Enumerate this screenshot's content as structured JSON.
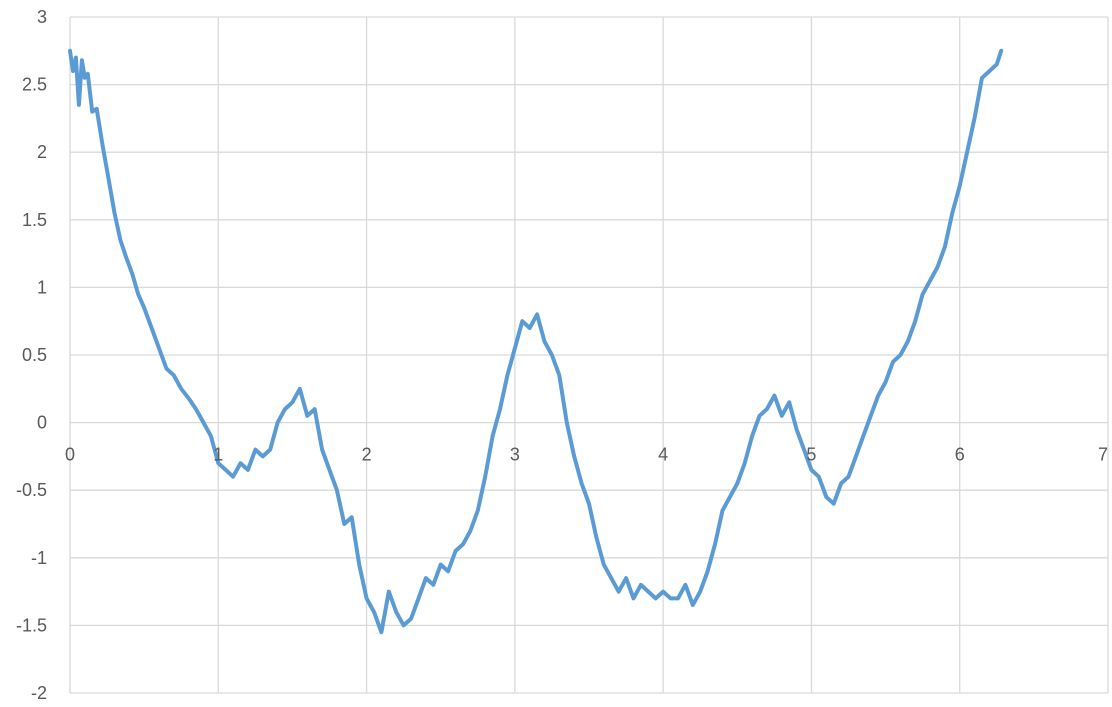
{
  "chart_data": {
    "type": "line",
    "title": "",
    "xlabel": "",
    "ylabel": "",
    "xlim": [
      0,
      7
    ],
    "ylim": [
      -2,
      3
    ],
    "xticks": [
      "0",
      "1",
      "2",
      "3",
      "4",
      "5",
      "6",
      "7"
    ],
    "yticks": [
      "3",
      "2.5",
      "2",
      "1.5",
      "1",
      "0.5",
      "0",
      "-0.5",
      "-1",
      "-1.5",
      "-2"
    ],
    "grid": true,
    "legend": "none",
    "line_color": "#5B9BD5",
    "grid_color": "#D9D9D9",
    "series": [
      {
        "x": [
          0.0,
          0.02,
          0.04,
          0.06,
          0.08,
          0.1,
          0.12,
          0.15,
          0.18,
          0.22,
          0.26,
          0.3,
          0.34,
          0.38,
          0.42,
          0.46,
          0.5,
          0.55,
          0.6,
          0.65,
          0.7,
          0.75,
          0.8,
          0.85,
          0.9,
          0.95,
          1.0,
          1.05,
          1.1,
          1.15,
          1.2,
          1.25,
          1.3,
          1.35,
          1.4,
          1.45,
          1.5,
          1.55,
          1.6,
          1.65,
          1.7,
          1.75,
          1.8,
          1.85,
          1.9,
          1.95,
          2.0,
          2.05,
          2.1,
          2.15,
          2.2,
          2.25,
          2.3,
          2.35,
          2.4,
          2.45,
          2.5,
          2.55,
          2.6,
          2.65,
          2.7,
          2.75,
          2.8,
          2.85,
          2.9,
          2.95,
          3.0,
          3.05,
          3.1,
          3.15,
          3.2,
          3.25,
          3.3,
          3.35,
          3.4,
          3.45,
          3.5,
          3.55,
          3.6,
          3.65,
          3.7,
          3.75,
          3.8,
          3.85,
          3.9,
          3.95,
          4.0,
          4.05,
          4.1,
          4.15,
          4.2,
          4.25,
          4.3,
          4.35,
          4.4,
          4.45,
          4.5,
          4.55,
          4.6,
          4.65,
          4.7,
          4.75,
          4.8,
          4.85,
          4.9,
          4.95,
          5.0,
          5.05,
          5.1,
          5.15,
          5.2,
          5.25,
          5.3,
          5.35,
          5.4,
          5.45,
          5.5,
          5.55,
          5.6,
          5.65,
          5.7,
          5.75,
          5.8,
          5.85,
          5.9,
          5.95,
          6.0,
          6.05,
          6.1,
          6.15,
          6.2,
          6.25,
          6.28
        ],
        "y": [
          2.75,
          2.6,
          2.7,
          2.35,
          2.68,
          2.55,
          2.58,
          2.3,
          2.32,
          2.05,
          1.8,
          1.55,
          1.35,
          1.22,
          1.1,
          0.95,
          0.85,
          0.7,
          0.55,
          0.4,
          0.35,
          0.25,
          0.18,
          0.1,
          0.0,
          -0.1,
          -0.3,
          -0.35,
          -0.4,
          -0.3,
          -0.35,
          -0.2,
          -0.25,
          -0.2,
          0.0,
          0.1,
          0.15,
          0.25,
          0.05,
          0.1,
          -0.2,
          -0.35,
          -0.5,
          -0.75,
          -0.7,
          -1.05,
          -1.3,
          -1.4,
          -1.55,
          -1.25,
          -1.4,
          -1.5,
          -1.45,
          -1.3,
          -1.15,
          -1.2,
          -1.05,
          -1.1,
          -0.95,
          -0.9,
          -0.8,
          -0.65,
          -0.4,
          -0.1,
          0.1,
          0.35,
          0.55,
          0.75,
          0.7,
          0.8,
          0.6,
          0.5,
          0.35,
          0.0,
          -0.25,
          -0.45,
          -0.6,
          -0.85,
          -1.05,
          -1.15,
          -1.25,
          -1.15,
          -1.3,
          -1.2,
          -1.25,
          -1.3,
          -1.25,
          -1.3,
          -1.3,
          -1.2,
          -1.35,
          -1.25,
          -1.1,
          -0.9,
          -0.65,
          -0.55,
          -0.45,
          -0.3,
          -0.1,
          0.05,
          0.1,
          0.2,
          0.05,
          0.15,
          -0.05,
          -0.2,
          -0.35,
          -0.4,
          -0.55,
          -0.6,
          -0.45,
          -0.4,
          -0.25,
          -0.1,
          0.05,
          0.2,
          0.3,
          0.45,
          0.5,
          0.6,
          0.75,
          0.95,
          1.05,
          1.15,
          1.3,
          1.55,
          1.75,
          2.0,
          2.25,
          2.55,
          2.6,
          2.65,
          2.75
        ]
      }
    ]
  }
}
